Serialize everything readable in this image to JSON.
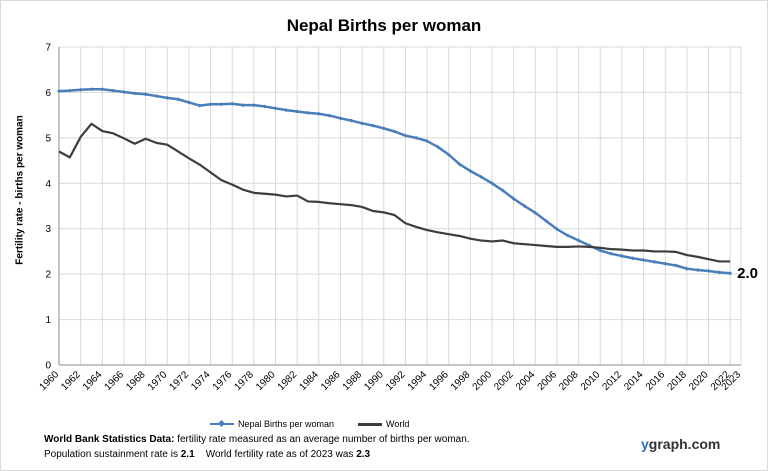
{
  "chart_data": {
    "type": "line",
    "title": "Nepal Births per woman",
    "xlabel": "",
    "ylabel": "Fertility rate  - births per woman",
    "ylim": [
      0,
      7
    ],
    "yticks": [
      0,
      1,
      2,
      3,
      4,
      5,
      6,
      7
    ],
    "xlim": [
      1960,
      2023
    ],
    "xticks": [
      1960,
      1962,
      1964,
      1966,
      1968,
      1970,
      1972,
      1974,
      1976,
      1978,
      1980,
      1982,
      1984,
      1986,
      1988,
      1990,
      1992,
      1994,
      1996,
      1998,
      2000,
      2002,
      2004,
      2006,
      2008,
      2010,
      2012,
      2014,
      2016,
      2018,
      2020,
      2022,
      2023
    ],
    "grid": true,
    "end_label": "2.0",
    "x": [
      1960,
      1961,
      1962,
      1963,
      1964,
      1965,
      1966,
      1967,
      1968,
      1969,
      1970,
      1971,
      1972,
      1973,
      1974,
      1975,
      1976,
      1977,
      1978,
      1979,
      1980,
      1981,
      1982,
      1983,
      1984,
      1985,
      1986,
      1987,
      1988,
      1989,
      1990,
      1991,
      1992,
      1993,
      1994,
      1995,
      1996,
      1997,
      1998,
      1999,
      2000,
      2001,
      2002,
      2003,
      2004,
      2005,
      2006,
      2007,
      2008,
      2009,
      2010,
      2011,
      2012,
      2013,
      2014,
      2015,
      2016,
      2017,
      2018,
      2019,
      2020,
      2021,
      2022
    ],
    "series": [
      {
        "name": "Nepal Births per woman",
        "color": "#4a7ebb",
        "values": [
          6.03,
          6.04,
          6.06,
          6.07,
          6.07,
          6.04,
          6.01,
          5.98,
          5.96,
          5.92,
          5.88,
          5.85,
          5.78,
          5.71,
          5.74,
          5.74,
          5.75,
          5.72,
          5.72,
          5.69,
          5.65,
          5.61,
          5.58,
          5.55,
          5.53,
          5.49,
          5.43,
          5.38,
          5.32,
          5.27,
          5.21,
          5.14,
          5.05,
          5.0,
          4.93,
          4.8,
          4.63,
          4.42,
          4.27,
          4.14,
          4.0,
          3.84,
          3.66,
          3.5,
          3.35,
          3.17,
          2.99,
          2.85,
          2.74,
          2.63,
          2.52,
          2.45,
          2.4,
          2.35,
          2.31,
          2.27,
          2.23,
          2.19,
          2.12,
          2.09,
          2.07,
          2.04,
          2.02
        ]
      },
      {
        "name": "World",
        "color": "#3d3d3d",
        "values": [
          4.7,
          4.57,
          5.02,
          5.31,
          5.15,
          5.1,
          4.99,
          4.87,
          4.98,
          4.89,
          4.85,
          4.7,
          4.55,
          4.41,
          4.24,
          4.07,
          3.97,
          3.86,
          3.79,
          3.77,
          3.75,
          3.71,
          3.73,
          3.6,
          3.59,
          3.56,
          3.54,
          3.52,
          3.48,
          3.39,
          3.36,
          3.3,
          3.12,
          3.04,
          2.97,
          2.92,
          2.88,
          2.84,
          2.78,
          2.74,
          2.72,
          2.74,
          2.68,
          2.66,
          2.64,
          2.62,
          2.6,
          2.6,
          2.61,
          2.6,
          2.58,
          2.55,
          2.54,
          2.52,
          2.52,
          2.5,
          2.5,
          2.49,
          2.42,
          2.38,
          2.33,
          2.28,
          2.28
        ]
      }
    ]
  },
  "legend": {
    "items": [
      {
        "label": "Nepal Births per woman"
      },
      {
        "label": "World"
      }
    ]
  },
  "footer": {
    "line1_bold": "World Bank  Statistics  Data:",
    "line1_text": " fertility rate measured as an average number  of births per woman.",
    "line2_a": "Population sustainment rate is ",
    "line2_b": "2.1",
    "line2_c": "    World fertility rate as of 2023 was ",
    "line2_d": "2.3"
  },
  "brand": {
    "y": "y",
    "rest": "graph.com"
  }
}
